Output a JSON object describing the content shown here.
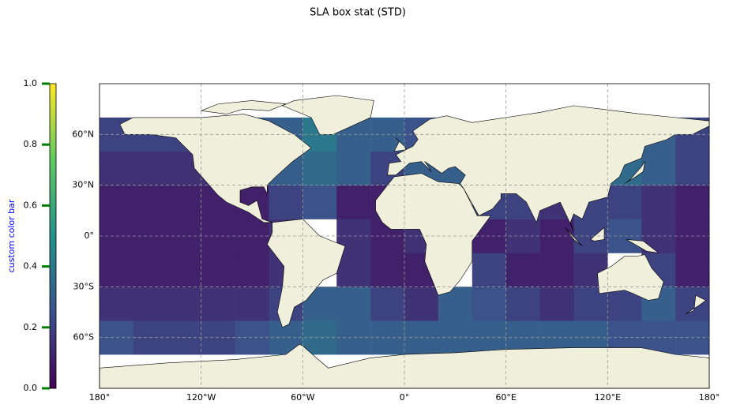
{
  "chart_data": {
    "type": "heatmap",
    "title": "SLA box stat (STD)",
    "xlim": [
      -180,
      180
    ],
    "ylim": [
      -90,
      90
    ],
    "xticks": [
      {
        "value": -180,
        "label": "180°"
      },
      {
        "value": -120,
        "label": "120°W"
      },
      {
        "value": -60,
        "label": "60°W"
      },
      {
        "value": 0,
        "label": "0°"
      },
      {
        "value": 60,
        "label": "60°E"
      },
      {
        "value": 120,
        "label": "120°E"
      },
      {
        "value": 180,
        "label": "180°"
      }
    ],
    "yticks": [
      {
        "value": -60,
        "label": "60°S"
      },
      {
        "value": -30,
        "label": "30°S"
      },
      {
        "value": 0,
        "label": "0°"
      },
      {
        "value": 30,
        "label": "30°N"
      },
      {
        "value": 60,
        "label": "60°N"
      }
    ],
    "grid": true,
    "xbins": [
      -180,
      -160,
      -140,
      -120,
      -100,
      -80,
      -60,
      -40,
      -20,
      0,
      20,
      40,
      60,
      80,
      100,
      120,
      140,
      160,
      180
    ],
    "ybins": [
      -70,
      -50,
      -30,
      -10,
      10,
      30,
      50,
      70
    ],
    "values": [
      [
        0.25,
        0.2,
        0.2,
        0.2,
        0.25,
        0.3,
        0.35,
        0.3,
        0.3,
        0.3,
        0.3,
        0.3,
        0.3,
        0.3,
        0.3,
        0.25,
        0.25,
        0.25
      ],
      [
        0.15,
        0.15,
        0.15,
        0.15,
        0.15,
        0.2,
        0.3,
        0.3,
        0.2,
        0.15,
        0.3,
        0.25,
        0.2,
        0.15,
        0.2,
        0.2,
        0.3,
        0.2
      ],
      [
        0.1,
        0.1,
        0.1,
        0.1,
        0.1,
        0.15,
        null,
        0.15,
        0.1,
        0.1,
        null,
        0.2,
        0.1,
        0.1,
        0.15,
        null,
        0.2,
        0.1
      ],
      [
        0.1,
        0.1,
        0.1,
        0.1,
        0.1,
        0.15,
        null,
        0.15,
        0.1,
        0.15,
        null,
        0.1,
        0.15,
        0.1,
        0.2,
        0.25,
        0.15,
        0.1
      ],
      [
        0.1,
        0.1,
        0.1,
        0.1,
        0.1,
        0.2,
        0.25,
        0.1,
        0.1,
        0.2,
        null,
        0.2,
        0.2,
        0.15,
        0.2,
        0.2,
        0.15,
        0.1
      ],
      [
        0.15,
        0.15,
        0.15,
        0.15,
        0.2,
        0.3,
        0.35,
        0.3,
        0.2,
        0.3,
        0.3,
        null,
        null,
        null,
        0.3,
        0.35,
        0.3,
        0.2
      ],
      [
        0.2,
        0.2,
        0.2,
        null,
        0.3,
        0.3,
        0.4,
        0.3,
        0.3,
        0.25,
        null,
        null,
        null,
        null,
        null,
        0.3,
        0.3,
        0.2
      ]
    ],
    "colormap": "viridis",
    "colorbar": {
      "label": "custom color bar",
      "lim": [
        0,
        1
      ],
      "ticks": [
        {
          "value": 0,
          "label": "0.0"
        },
        {
          "value": 0.2,
          "label": "0.2"
        },
        {
          "value": 0.4,
          "label": "0.4"
        },
        {
          "value": 0.6,
          "label": "0.6"
        },
        {
          "value": 0.8,
          "label": "0.8"
        },
        {
          "value": 1,
          "label": "1.0"
        }
      ],
      "label_color": "blue",
      "tick_color": "green"
    }
  }
}
